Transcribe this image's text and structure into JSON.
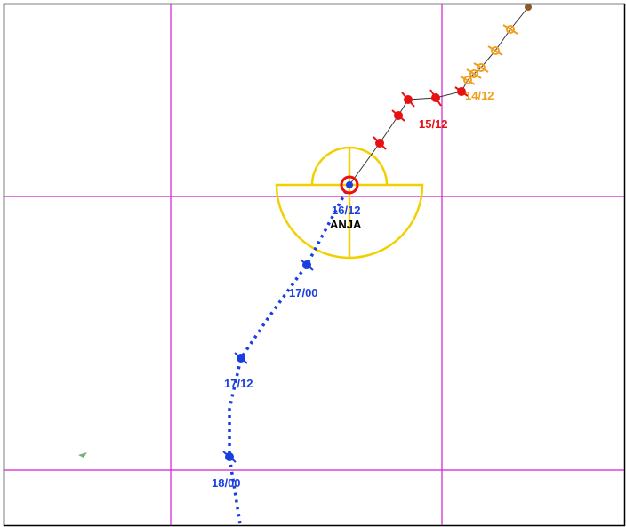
{
  "storm_name": "ANJA",
  "track_labels": [
    "14/12",
    "15/12",
    "16/12",
    "17/00",
    "17/12",
    "18/00"
  ]
}
